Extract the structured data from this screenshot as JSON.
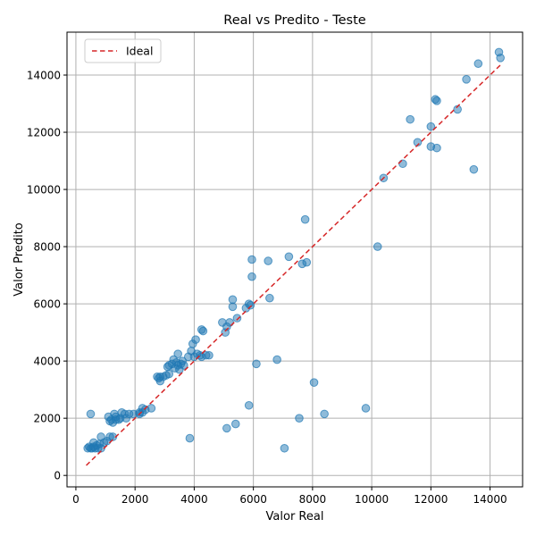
{
  "chart_data": {
    "type": "scatter",
    "title": "Real vs Predito - Teste",
    "xlabel": "Valor Real",
    "ylabel": "Valor Predito",
    "xlim": [
      -300,
      15100
    ],
    "ylim": [
      -400,
      15500
    ],
    "xticks": [
      0,
      2000,
      4000,
      6000,
      8000,
      10000,
      12000,
      14000
    ],
    "yticks": [
      0,
      2000,
      4000,
      6000,
      8000,
      10000,
      12000,
      14000
    ],
    "grid": true,
    "legend_position": "top-left",
    "ideal_line": {
      "name": "Ideal",
      "from": [
        350,
        350
      ],
      "to": [
        14350,
        14350
      ],
      "color": "#d62728",
      "style": "dashed"
    },
    "point_color": "#1f77b4",
    "points": [
      [
        14300,
        14800
      ],
      [
        14350,
        14600
      ],
      [
        13600,
        14400
      ],
      [
        13200,
        13850
      ],
      [
        12150,
        13150
      ],
      [
        12200,
        13100
      ],
      [
        12900,
        12800
      ],
      [
        11300,
        12450
      ],
      [
        12000,
        12200
      ],
      [
        11550,
        11650
      ],
      [
        12000,
        11500
      ],
      [
        12200,
        11450
      ],
      [
        11050,
        10900
      ],
      [
        13450,
        10700
      ],
      [
        10400,
        10400
      ],
      [
        10200,
        8000
      ],
      [
        7750,
        8950
      ],
      [
        7200,
        7650
      ],
      [
        5950,
        7550
      ],
      [
        6500,
        7500
      ],
      [
        7800,
        7450
      ],
      [
        7650,
        7400
      ],
      [
        5950,
        6950
      ],
      [
        6550,
        6200
      ],
      [
        5300,
        6150
      ],
      [
        5850,
        6000
      ],
      [
        5900,
        5950
      ],
      [
        5300,
        5900
      ],
      [
        5750,
        5850
      ],
      [
        5450,
        5500
      ],
      [
        4950,
        5350
      ],
      [
        5200,
        5350
      ],
      [
        5100,
        5200
      ],
      [
        4250,
        5100
      ],
      [
        4300,
        5050
      ],
      [
        5050,
        5000
      ],
      [
        4050,
        4750
      ],
      [
        3950,
        4600
      ],
      [
        3900,
        4350
      ],
      [
        3450,
        4250
      ],
      [
        4100,
        4250
      ],
      [
        4200,
        4200
      ],
      [
        4400,
        4200
      ],
      [
        4500,
        4200
      ],
      [
        3800,
        4150
      ],
      [
        4000,
        4150
      ],
      [
        4250,
        4150
      ],
      [
        3300,
        4050
      ],
      [
        3600,
        4000
      ],
      [
        3400,
        3950
      ],
      [
        3250,
        3900
      ],
      [
        3550,
        3900
      ],
      [
        3150,
        3850
      ],
      [
        3450,
        3850
      ],
      [
        3650,
        3850
      ],
      [
        3100,
        3800
      ],
      [
        3350,
        3750
      ],
      [
        3500,
        3700
      ],
      [
        3150,
        3550
      ],
      [
        3050,
        3500
      ],
      [
        2750,
        3450
      ],
      [
        2850,
        3450
      ],
      [
        2950,
        3450
      ],
      [
        2800,
        3400
      ],
      [
        2850,
        3300
      ],
      [
        6800,
        4050
      ],
      [
        6100,
        3900
      ],
      [
        8050,
        3250
      ],
      [
        5850,
        2450
      ],
      [
        2550,
        2350
      ],
      [
        2250,
        2350
      ],
      [
        2350,
        2300
      ],
      [
        9800,
        2350
      ],
      [
        8400,
        2150
      ],
      [
        2150,
        2200
      ],
      [
        2250,
        2200
      ],
      [
        2150,
        2150
      ],
      [
        1800,
        2150
      ],
      [
        1550,
        2200
      ],
      [
        1300,
        2150
      ],
      [
        500,
        2150
      ],
      [
        1650,
        2150
      ],
      [
        1950,
        2150
      ],
      [
        1100,
        2050
      ],
      [
        1350,
        2050
      ],
      [
        1500,
        2000
      ],
      [
        1700,
        2000
      ],
      [
        1200,
        1950
      ],
      [
        1350,
        1950
      ],
      [
        1450,
        1950
      ],
      [
        1150,
        1900
      ],
      [
        1250,
        1850
      ],
      [
        7550,
        2000
      ],
      [
        5400,
        1800
      ],
      [
        5100,
        1650
      ],
      [
        3850,
        1300
      ],
      [
        850,
        1350
      ],
      [
        1150,
        1350
      ],
      [
        1250,
        1350
      ],
      [
        1050,
        1200
      ],
      [
        600,
        1150
      ],
      [
        950,
        1150
      ],
      [
        800,
        1100
      ],
      [
        700,
        1050
      ],
      [
        400,
        950
      ],
      [
        500,
        950
      ],
      [
        550,
        950
      ],
      [
        650,
        950
      ],
      [
        750,
        950
      ],
      [
        850,
        950
      ],
      [
        450,
        1000
      ],
      [
        600,
        1000
      ],
      [
        7050,
        950
      ]
    ]
  }
}
